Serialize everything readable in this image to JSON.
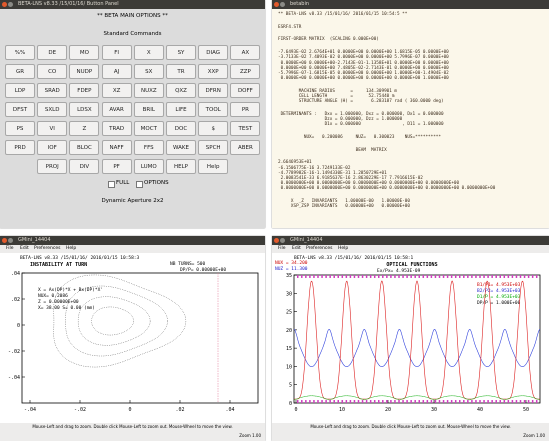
{
  "button_panel": {
    "title": "BETA-LNS v8.33 /15/01/16/ Button Panel",
    "header": "** BETA MAIN OPTIONS **",
    "section": "Standard Commands",
    "buttons": [
      [
        "%%",
        "DE",
        "MO",
        "FI",
        "X",
        "SY",
        "DIAG",
        "AX"
      ],
      [
        "GR",
        "CO",
        "NUDP",
        "AJ",
        "SX",
        "TR",
        "XXP",
        "ZZP"
      ],
      [
        "LDP",
        "SRAD",
        "FDEP",
        "XZ",
        "NUXZ",
        "QXZ",
        "DFRN",
        "DOFF"
      ],
      [
        "DFST",
        "SXLD",
        "LDSX",
        "AVAR",
        "BRIL",
        "LIFE",
        "TOOL",
        "PR"
      ],
      [
        "PS",
        "VI",
        "Z",
        "TRAD",
        "MOCT",
        "DOC",
        "$",
        "TEST"
      ],
      [
        "PRD",
        "IOF",
        "BLOC",
        "NAFF",
        "FFS",
        "WAKE",
        "SPCH",
        "ABER"
      ],
      [
        "PROJ",
        "DIV",
        "PF",
        "LUMO",
        "HELP",
        "Help"
      ]
    ],
    "checkboxes": [
      "FULL",
      "OPTIONS"
    ],
    "footer": "Dynamic Aperture 2x2"
  },
  "text_window": {
    "title": "betabin",
    "blocks": [
      [
        "** BETA-LNS v8.33 /15/01/16/ 2016/01/15 10:54:5 **"
      ],
      [
        "ESRF4.STR"
      ],
      [
        "FIRST-ORDER MATRIX  (SCALING 0.000E+00)"
      ],
      [
        "-7.6493E-02 2.6764E+01 0.0000E+00 0.0000E+00 1.6815E-05 0.0000E+00",
        "-3.7133E-02 7.4093E-02 0.0000E+00 0.0000E+00 5.7996E-07 0.0000E+00",
        " 0.0000E+00 0.0000E+00-2.7143E-01-1.1358E+01 0.0000E+00 0.0000E+00",
        " 0.0000E+00 0.0000E+00 7.4805E-02-2.7143E-01 0.0000E+00 0.0000E+00",
        "-5.7996E-07-1.6815E-05 0.0000E+00 0.0000E+00 1.0000E+00-1.4904E-02",
        " 0.0000E+00 0.0000E+00 0.0000E+00 0.0000E+00 0.0000E+00 1.0000E+00"
      ],
      [
        "        MACHINE RADIUS      =     134.309901 m",
        "        CELL LENGTH         =      52.75440 m",
        "        STRUCTURE ANGLE (H) =       6.283187 rad ( 360.0000 deg)"
      ],
      [
        " DETERMINANTS :   Dxx = 1.000000, Dxz = 0.000000, Dx1 = 0.000000",
        "                  Dzx = 0.000000, Dzz = 1.000000",
        "                  D1x = 0.000000                , D11 = 1.000000"
      ],
      [
        "          NUX=   0.200086     NUZ=   0.300023    NUS=**********"
      ],
      [
        "                              BEAM  MATRIX"
      ],
      [
        "2.6646953E+01",
        "-6.1506775E-16 3.7249133E-02",
        "-4.7789982E-16-1.1494330E-31 1.2850729E+01",
        " 2.0083541E-33 6.9185637E-16 2.8630229E-17 7.7916615E-02",
        " 0.0000000E+00 0.0000000E+00 0.0000000E+00 0.0000000E+00 0.0000000E+00",
        " 0.0000000E+00 0.0000000E+00 0.0000000E+00 0.0000000E+00 0.0000000E+00 0.0000000E+00"
      ],
      [
        "     X  _Z   INVARIANTS   1.00000E-00   1.00000E-00",
        "     XSP_ZSP INVARIANTS   0.00000E+00   0.00000E+00"
      ]
    ]
  },
  "plot_left": {
    "title": "GMini_14404",
    "menu": [
      "File",
      "Edit",
      "Preferences",
      "Help"
    ],
    "header": "BETA-LNS v8.33 /15/01/16/  2016/01/15 10:58:3",
    "heading": "INSTABILITY AT TURN",
    "turns": "NB TURNS=  500",
    "dpp": "DP/P= 0.00000E+00",
    "legend": [
      "X = Ax(DP)*X + Bx(DP)*X'",
      "NUX= 0.2086",
      "Z = 0.00000E+00",
      "X= 38.00  S=  0.00 (mm)"
    ],
    "xticks": [
      "-.04",
      "-.02",
      "0",
      ".02",
      ".04"
    ],
    "yticks": [
      ".04",
      ".02",
      "0",
      "-.02",
      "-.04"
    ],
    "status": "Mouse-Left and drag to zoom. Double click Mouse-Left to zoom out. Mouse-Wheel to move the view.",
    "zoom": "Zoom 1.00"
  },
  "plot_right": {
    "title": "GMini_14404",
    "menu": [
      "File",
      "Edit",
      "Preferences",
      "Help"
    ],
    "header": "BETA-LNS v8.33 /15/01/16/  2016/01/15 10:58:1",
    "heading": "OPTICAL FUNCTIONS",
    "nux": "NUX = 34.200",
    "nuz": "NUZ = 11.300",
    "emit": "Ex/Px= 4.953E-09",
    "legend": [
      "B1/P1= 4.953E+03",
      "B2/P2= 4.953E+03",
      "D1/P = 4.953E+03",
      "DP/P = 1.000E+00"
    ],
    "xticks": [
      "0",
      "10",
      "20",
      "30",
      "40",
      "50"
    ],
    "yticks": [
      "35",
      "30",
      "25",
      "20",
      "15",
      "10",
      "5",
      "0"
    ],
    "status": "Mouse-Left and drag to zoom. Double click Mouse-Left to zoom out. Mouse-Wheel to move the view.",
    "zoom": "Zoom 1.00"
  }
}
